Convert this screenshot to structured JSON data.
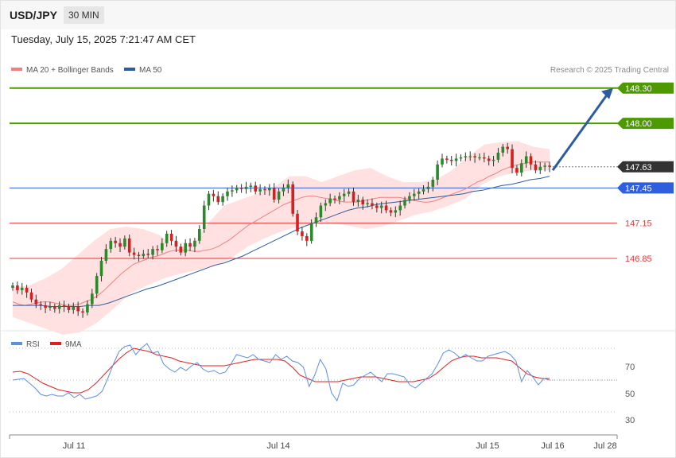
{
  "header": {
    "symbol": "USD/JPY",
    "timeframe": "30 MIN"
  },
  "datetime": "Tuesday, July 15, 2025 7:21:47 AM CET",
  "copyright": "Research © 2025 Trading Central",
  "colors": {
    "resistance": "#4c9a00",
    "pivot": "#2f5fde",
    "support": "#e23c3c",
    "price_tag": "#333333",
    "bollinger_fill": "#ffdcdc",
    "ma20": "#f08080",
    "ma50": "#2e5d9f",
    "rsi": "#5b8fe0",
    "rsi_ma": "#e02020",
    "arrow": "#2e5d9f",
    "candle_up": "#2a8a2a",
    "candle_down": "#d42020"
  },
  "chart_data": [
    {
      "type": "candlestick",
      "title": "",
      "legend": [
        {
          "name": "MA 20 + Bollinger Bands",
          "color": "#f08080"
        },
        {
          "name": "MA 50",
          "color": "#2e5d9f"
        }
      ],
      "legend_placement": "top-left",
      "x_ticks": [
        "Jul 11",
        "Jul 14",
        "Jul 15",
        "Jul 16",
        "Jul 28"
      ],
      "ylim": [
        146.2,
        148.4
      ],
      "levels": [
        {
          "value": 148.3,
          "label": "148.30",
          "kind": "resistance"
        },
        {
          "value": 148.0,
          "label": "148.00",
          "kind": "resistance"
        },
        {
          "value": 147.63,
          "label": "147.63",
          "kind": "last"
        },
        {
          "value": 147.45,
          "label": "147.45",
          "kind": "pivot"
        },
        {
          "value": 147.15,
          "label": "147.15",
          "kind": "support"
        },
        {
          "value": 146.85,
          "label": "146.85",
          "kind": "support"
        }
      ],
      "forecast_arrow": {
        "from": 147.6,
        "to": 148.3
      },
      "closes": [
        146.62,
        146.58,
        146.6,
        146.56,
        146.5,
        146.46,
        146.45,
        146.43,
        146.44,
        146.42,
        146.45,
        146.44,
        146.41,
        146.44,
        146.4,
        146.39,
        146.46,
        146.55,
        146.7,
        146.83,
        146.93,
        147.0,
        146.98,
        146.95,
        147.02,
        146.9,
        146.88,
        146.87,
        146.89,
        146.88,
        146.93,
        146.92,
        146.98,
        147.06,
        147.0,
        146.95,
        146.9,
        146.98,
        146.95,
        147.0,
        147.1,
        147.3,
        147.4,
        147.38,
        147.33,
        147.38,
        147.42,
        147.43,
        147.45,
        147.44,
        147.46,
        147.47,
        147.42,
        147.44,
        147.43,
        147.45,
        147.35,
        147.42,
        147.45,
        147.48,
        147.23,
        147.08,
        147.04,
        147.0,
        147.15,
        147.2,
        147.3,
        147.32,
        147.36,
        147.35,
        147.38,
        147.4,
        147.42,
        147.33,
        147.35,
        147.31,
        147.32,
        147.3,
        147.28,
        147.3,
        147.26,
        147.24,
        147.26,
        147.3,
        147.35,
        147.38,
        147.4,
        147.42,
        147.44,
        147.46,
        147.52,
        147.65,
        147.7,
        147.69,
        147.68,
        147.7,
        147.71,
        147.72,
        147.72,
        147.71,
        147.71,
        147.7,
        147.68,
        147.69,
        147.75,
        147.8,
        147.78,
        147.62,
        147.58,
        147.66,
        147.72,
        147.65,
        147.6,
        147.63,
        147.64,
        147.63
      ],
      "ma20": [
        146.48,
        146.46,
        146.45,
        146.46,
        146.47,
        146.48,
        146.48,
        146.47,
        146.46,
        146.45,
        146.45,
        146.46,
        146.48,
        146.5,
        146.53,
        146.57,
        146.62,
        146.67,
        146.72,
        146.76,
        146.8,
        146.82,
        146.84,
        146.86,
        146.87,
        146.89,
        146.91,
        146.92,
        146.92,
        146.92,
        146.91,
        146.91,
        146.92,
        146.93,
        146.95,
        146.98,
        147.01,
        147.05,
        147.09,
        147.13,
        147.16,
        147.19,
        147.22,
        147.25,
        147.28,
        147.31,
        147.33,
        147.35,
        147.37,
        147.38,
        147.38,
        147.37,
        147.36,
        147.35,
        147.34,
        147.33,
        147.33,
        147.33,
        147.34,
        147.35,
        147.36,
        147.37,
        147.37,
        147.37,
        147.37,
        147.36,
        147.35,
        147.34,
        147.33,
        147.33,
        147.34,
        147.36,
        147.38,
        147.4,
        147.42,
        147.44,
        147.47,
        147.5,
        147.52,
        147.55,
        147.57,
        147.6,
        147.62,
        147.64,
        147.65,
        147.66,
        147.67,
        147.67,
        147.67,
        147.67
      ],
      "ma50": [
        146.45,
        146.45,
        146.45,
        146.45,
        146.44,
        146.44,
        146.44,
        146.44,
        146.45,
        146.45,
        146.47,
        146.5,
        146.53,
        146.56,
        146.59,
        146.61,
        146.64,
        146.67,
        146.7,
        146.73,
        146.76,
        146.79,
        146.81,
        146.84,
        146.87,
        146.91,
        146.95,
        146.99,
        147.03,
        147.07,
        147.11,
        147.14,
        147.17,
        147.2,
        147.23,
        147.26,
        147.28,
        147.29,
        147.31,
        147.32,
        147.33,
        147.34,
        147.35,
        147.36,
        147.37,
        147.38,
        147.39,
        147.4,
        147.42,
        147.43,
        147.45,
        147.47,
        147.48,
        147.5,
        147.52,
        147.53,
        147.55
      ],
      "bb_upper": [
        146.6,
        146.62,
        146.68,
        146.76,
        146.88,
        147.0,
        147.1,
        147.12,
        147.1,
        147.05,
        146.95,
        146.95,
        147.15,
        147.3,
        147.35,
        147.4,
        147.45,
        147.55,
        147.55,
        147.5,
        147.55,
        147.6,
        147.62,
        147.55,
        147.5,
        147.5,
        147.52,
        147.6,
        147.72,
        147.82,
        147.84,
        147.85,
        147.8,
        147.78
      ],
      "bb_lower": [
        146.35,
        146.3,
        146.25,
        146.2,
        146.22,
        146.3,
        146.42,
        146.55,
        146.62,
        146.68,
        146.72,
        146.75,
        146.78,
        146.85,
        146.95,
        147.02,
        147.08,
        147.12,
        147.15,
        147.15,
        147.13,
        147.1,
        147.12,
        147.17,
        147.22,
        147.25,
        147.3,
        147.36,
        147.48,
        147.55,
        147.58,
        147.6,
        147.6
      ]
    },
    {
      "type": "line",
      "title": "",
      "legend": [
        {
          "name": "RSI",
          "color": "#5b8fe0"
        },
        {
          "name": "9MA",
          "color": "#e02020"
        }
      ],
      "legend_placement": "top-left",
      "y_ticks": [
        "70",
        "50",
        "30"
      ],
      "ylim": [
        25,
        75
      ],
      "rsi": [
        50,
        50.5,
        51,
        48,
        45,
        41,
        40,
        41,
        40,
        40,
        42,
        39,
        41,
        38,
        39,
        40,
        43,
        51,
        60,
        68,
        71,
        72,
        66,
        70,
        73,
        67,
        68,
        60,
        57,
        55,
        58,
        56,
        59,
        61,
        57,
        55,
        56,
        54,
        55,
        60,
        66,
        65,
        64,
        66,
        63,
        62,
        61,
        66,
        63,
        65,
        62,
        61,
        58,
        46,
        53,
        63,
        57,
        42,
        37,
        48,
        46,
        47,
        51,
        53,
        55,
        52,
        49,
        54,
        54,
        53,
        52,
        47,
        45,
        48,
        51,
        54,
        60,
        67,
        69,
        67,
        64,
        66,
        64,
        62,
        62,
        65,
        66,
        67,
        68,
        66,
        62,
        49,
        56,
        52,
        47,
        51,
        50
      ],
      "rsi_ma": [
        55,
        55.5,
        54,
        51,
        48,
        46,
        44,
        43,
        42,
        42,
        44,
        48,
        53,
        58,
        63,
        67,
        70,
        69,
        68,
        66,
        65,
        64,
        62,
        61,
        60,
        59,
        59,
        59,
        59,
        60,
        61,
        62,
        63,
        63,
        63,
        63,
        62,
        58,
        53,
        51,
        49,
        49,
        49,
        49,
        50,
        51,
        52,
        52,
        52,
        51,
        50,
        49,
        49,
        49,
        50,
        51,
        54,
        58,
        62,
        64,
        65,
        65,
        64,
        64,
        64,
        63,
        62,
        58,
        54,
        52,
        51,
        51
      ],
      "last_value": 50
    }
  ]
}
